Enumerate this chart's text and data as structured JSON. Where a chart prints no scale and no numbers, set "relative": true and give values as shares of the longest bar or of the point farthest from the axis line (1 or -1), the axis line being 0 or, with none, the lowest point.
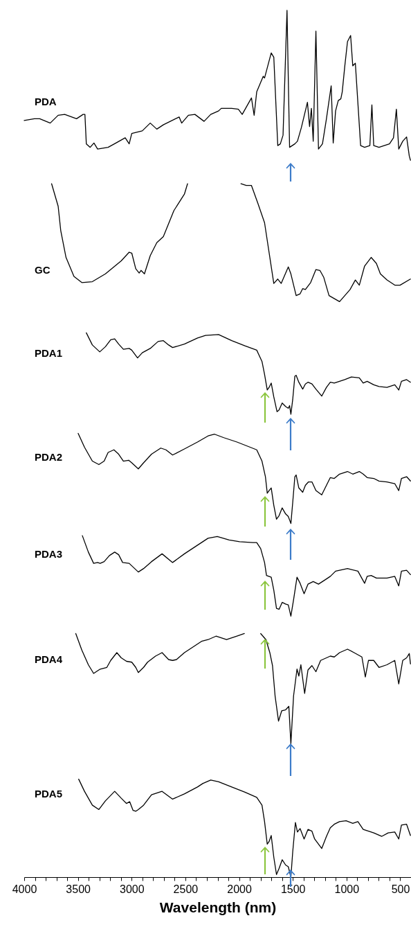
{
  "chart_data": {
    "type": "line",
    "relative": true,
    "xlim": [
      4000,
      400
    ],
    "xlabel": "Wavelength (nm)",
    "xticks": [
      4000,
      {
        "value": 3900,
        "label": null
      },
      {
        "value": 3800,
        "label": null
      },
      {
        "value": 3700,
        "label": null
      },
      {
        "value": 3600,
        "label": null
      },
      3500,
      {
        "value": 3400,
        "label": null
      },
      {
        "value": 3300,
        "label": null
      },
      {
        "value": 3200,
        "label": null
      },
      {
        "value": 3100,
        "label": null
      },
      3000,
      {
        "value": 2900,
        "label": null
      },
      {
        "value": 2800,
        "label": null
      },
      {
        "value": 2700,
        "label": null
      },
      {
        "value": 2600,
        "label": null
      },
      2500,
      {
        "value": 2400,
        "label": null
      },
      {
        "value": 2300,
        "label": null
      },
      {
        "value": 2200,
        "label": null
      },
      {
        "value": 2100,
        "label": null
      },
      2000,
      {
        "value": 1900,
        "label": null
      },
      {
        "value": 1800,
        "label": null
      },
      {
        "value": 1700,
        "label": null
      },
      {
        "value": 1600,
        "label": null
      },
      1500,
      {
        "value": 1400,
        "label": null
      },
      {
        "value": 1300,
        "label": null
      },
      {
        "value": 1200,
        "label": null
      },
      {
        "value": 1100,
        "label": null
      },
      1000,
      {
        "value": 900,
        "label": null
      },
      {
        "value": 800,
        "label": null
      },
      {
        "value": 700,
        "label": null
      },
      {
        "value": 600,
        "label": null
      },
      500,
      {
        "value": 400,
        "label": null
      }
    ],
    "series": [
      {
        "name": "PDA",
        "color": "#000000",
        "x": [
          4000,
          3905,
          3856,
          3758,
          3684,
          3623,
          3513,
          3452,
          3435,
          3422,
          3386,
          3351,
          3317,
          3219,
          3146,
          3060,
          3023,
          2999,
          2901,
          2827,
          2766,
          2705,
          2558,
          2534,
          2472,
          2411,
          2326,
          2264,
          2191,
          2166,
          2069,
          2007,
          1971,
          1885,
          1860,
          1836,
          1775,
          1763,
          1701,
          1677,
          1640,
          1616,
          1591,
          1554,
          1530,
          1481,
          1457,
          1420,
          1364,
          1344,
          1327,
          1310,
          1285,
          1261,
          1224,
          1187,
          1143,
          1124,
          1102,
          1077,
          1053,
          1040,
          1016,
          991,
          962,
          942,
          918,
          869,
          832,
          783,
          764,
          747,
          698,
          600,
          563,
          536,
          514,
          477,
          441,
          416,
          405
        ],
        "values": [
          0.873,
          0.875,
          0.875,
          0.87,
          0.879,
          0.88,
          0.875,
          0.88,
          0.88,
          0.846,
          0.842,
          0.847,
          0.84,
          0.842,
          0.847,
          0.853,
          0.846,
          0.858,
          0.861,
          0.87,
          0.863,
          0.868,
          0.877,
          0.87,
          0.879,
          0.88,
          0.872,
          0.88,
          0.884,
          0.887,
          0.887,
          0.886,
          0.88,
          0.899,
          0.879,
          0.906,
          0.924,
          0.922,
          0.951,
          0.946,
          0.844,
          0.846,
          0.856,
          1,
          0.842,
          0.846,
          0.849,
          0.865,
          0.894,
          0.866,
          0.887,
          0.849,
          0.976,
          0.84,
          0.846,
          0.875,
          0.913,
          0.847,
          0.884,
          0.896,
          0.898,
          0.906,
          0.936,
          0.964,
          0.971,
          0.936,
          0.939,
          0.844,
          0.842,
          0.844,
          0.891,
          0.844,
          0.842,
          0.846,
          0.853,
          0.886,
          0.84,
          0.849,
          0.854,
          0.832,
          0.827
        ]
      },
      {
        "name": "GC",
        "color": "#000000",
        "x": [
          3745,
          3684,
          3660,
          3611,
          3537,
          3464,
          3366,
          3244,
          3097,
          3023,
          2999,
          2962,
          2930,
          2913,
          2881,
          2827,
          2766,
          2705,
          2607,
          2509,
          2480,
          2200,
          1983,
          1934,
          1885,
          1824,
          1763,
          1677,
          1640,
          1608,
          1542,
          1518,
          1469,
          1432,
          1408,
          1383,
          1334,
          1285,
          1248,
          1212,
          1163,
          1065,
          967,
          918,
          881,
          832,
          771,
          722,
          685,
          624,
          551,
          502,
          405
        ],
        "values": [
          0.8,
          0.774,
          0.746,
          0.715,
          0.693,
          0.686,
          0.687,
          0.696,
          0.711,
          0.721,
          0.72,
          0.702,
          0.697,
          0.7,
          0.696,
          0.717,
          0.732,
          0.739,
          0.769,
          0.788,
          0.8,
          null,
          0.8,
          0.798,
          0.798,
          0.777,
          0.755,
          0.685,
          0.69,
          0.685,
          0.704,
          0.696,
          0.671,
          0.673,
          0.679,
          0.678,
          0.686,
          0.701,
          0.7,
          0.692,
          0.671,
          0.664,
          0.678,
          0.689,
          0.683,
          0.705,
          0.715,
          0.708,
          0.696,
          0.689,
          0.683,
          0.683,
          0.69
        ]
      },
      {
        "name": "PDA1",
        "color": "#000000",
        "x": [
          3422,
          3366,
          3297,
          3244,
          3195,
          3158,
          3121,
          3077,
          3023,
          2999,
          2945,
          2901,
          2827,
          2754,
          2705,
          2656,
          2619,
          2509,
          2387,
          2313,
          2191,
          2069,
          1946,
          1836,
          1787,
          1763,
          1738,
          1721,
          1701,
          1677,
          1647,
          1628,
          1599,
          1567,
          1542,
          1530,
          1518,
          1501,
          1481,
          1469,
          1444,
          1408,
          1383,
          1359,
          1322,
          1285,
          1231,
          1187,
          1151,
          1114,
          1065,
          1016,
          955,
          881,
          845,
          808,
          747,
          698,
          624,
          551,
          514,
          489,
          441,
          405
        ],
        "values": [
          0.628,
          0.614,
          0.606,
          0.612,
          0.62,
          0.621,
          0.615,
          0.609,
          0.61,
          0.608,
          0.599,
          0.605,
          0.61,
          0.618,
          0.619,
          0.614,
          0.611,
          0.615,
          0.622,
          0.625,
          0.626,
          0.619,
          0.613,
          0.608,
          0.595,
          0.58,
          0.562,
          0.565,
          0.57,
          0.554,
          0.537,
          0.539,
          0.547,
          0.543,
          0.541,
          0.544,
          0.534,
          0.551,
          0.578,
          0.579,
          0.571,
          0.563,
          0.569,
          0.571,
          0.569,
          0.563,
          0.555,
          0.565,
          0.571,
          0.57,
          0.572,
          0.574,
          0.577,
          0.576,
          0.57,
          0.572,
          0.568,
          0.566,
          0.565,
          0.568,
          0.562,
          0.572,
          0.574,
          0.571
        ]
      },
      {
        "name": "PDA2",
        "color": "#000000",
        "x": [
          3498,
          3439,
          3366,
          3305,
          3256,
          3219,
          3165,
          3121,
          3077,
          3028,
          2999,
          2938,
          2889,
          2815,
          2729,
          2681,
          2619,
          2509,
          2387,
          2289,
          2228,
          2142,
          2020,
          1897,
          1836,
          1787,
          1755,
          1738,
          1721,
          1701,
          1677,
          1652,
          1628,
          1599,
          1567,
          1542,
          1518,
          1501,
          1481,
          1469,
          1444,
          1408,
          1383,
          1354,
          1322,
          1285,
          1231,
          1187,
          1151,
          1114,
          1065,
          991,
          942,
          881,
          845,
          808,
          747,
          698,
          624,
          551,
          514,
          489,
          441,
          405
        ],
        "values": [
          0.512,
          0.496,
          0.48,
          0.476,
          0.48,
          0.49,
          0.493,
          0.488,
          0.48,
          0.481,
          0.478,
          0.471,
          0.478,
          0.488,
          0.495,
          0.493,
          0.487,
          0.494,
          0.502,
          0.509,
          0.511,
          0.507,
          0.502,
          0.496,
          0.493,
          0.48,
          0.462,
          0.443,
          0.446,
          0.449,
          0.429,
          0.413,
          0.417,
          0.426,
          0.419,
          0.416,
          0.408,
          0.432,
          0.462,
          0.464,
          0.449,
          0.444,
          0.452,
          0.456,
          0.456,
          0.446,
          0.441,
          0.452,
          0.461,
          0.46,
          0.465,
          0.468,
          0.465,
          0.468,
          0.465,
          0.461,
          0.46,
          0.457,
          0.456,
          0.454,
          0.446,
          0.46,
          0.462,
          0.457
        ]
      },
      {
        "name": "PDA3",
        "color": "#000000",
        "x": [
          3459,
          3403,
          3354,
          3317,
          3293,
          3256,
          3207,
          3158,
          3121,
          3084,
          3023,
          2938,
          2889,
          2815,
          2717,
          2619,
          2509,
          2387,
          2289,
          2203,
          2093,
          1995,
          1873,
          1836,
          1799,
          1763,
          1745,
          1701,
          1677,
          1652,
          1628,
          1599,
          1567,
          1542,
          1518,
          1493,
          1461,
          1432,
          1395,
          1359,
          1310,
          1261,
          1187,
          1151,
          1102,
          991,
          894,
          832,
          808,
          771,
          722,
          624,
          551,
          514,
          489,
          441,
          405
        ],
        "values": [
          0.394,
          0.375,
          0.362,
          0.363,
          0.362,
          0.364,
          0.371,
          0.375,
          0.372,
          0.363,
          0.362,
          0.352,
          0.356,
          0.364,
          0.373,
          0.363,
          0.373,
          0.383,
          0.391,
          0.393,
          0.389,
          0.387,
          0.386,
          0.386,
          0.379,
          0.363,
          0.348,
          0.346,
          0.331,
          0.31,
          0.309,
          0.317,
          0.315,
          0.314,
          0.301,
          0.32,
          0.346,
          0.339,
          0.327,
          0.338,
          0.341,
          0.338,
          0.344,
          0.347,
          0.353,
          0.356,
          0.353,
          0.339,
          0.347,
          0.348,
          0.345,
          0.345,
          0.347,
          0.336,
          0.353,
          0.354,
          0.349
        ]
      },
      {
        "name": "PDA4",
        "color": "#000000",
        "x": [
          3520,
          3464,
          3403,
          3354,
          3293,
          3231,
          3195,
          3138,
          3097,
          3048,
          2999,
          2962,
          2938,
          2889,
          2852,
          2778,
          2717,
          2656,
          2619,
          2583,
          2509,
          2411,
          2350,
          2289,
          2215,
          2117,
          2020,
          1951,
          1880,
          1799,
          1750,
          1714,
          1689,
          1665,
          1633,
          1603,
          1567,
          1537,
          1518,
          1493,
          1461,
          1444,
          1425,
          1390,
          1359,
          1322,
          1285,
          1241,
          1187,
          1151,
          1114,
          1065,
          991,
          930,
          857,
          825,
          796,
          747,
          698,
          624,
          551,
          514,
          477,
          441,
          416,
          405
        ],
        "values": [
          0.281,
          0.262,
          0.245,
          0.235,
          0.24,
          0.242,
          0.25,
          0.259,
          0.253,
          0.249,
          0.248,
          0.242,
          0.236,
          0.242,
          0.248,
          0.255,
          0.259,
          0.251,
          0.25,
          0.251,
          0.259,
          0.267,
          0.272,
          0.274,
          0.278,
          0.274,
          0.278,
          0.281,
          null,
          0.281,
          0.274,
          0.259,
          0.244,
          0.209,
          0.18,
          0.192,
          0.193,
          0.197,
          0.154,
          0.209,
          0.24,
          0.232,
          0.245,
          0.212,
          0.239,
          0.244,
          0.237,
          0.25,
          0.253,
          0.255,
          0.254,
          0.259,
          0.263,
          0.259,
          0.254,
          0.231,
          0.25,
          0.25,
          0.242,
          0.245,
          0.25,
          0.223,
          0.25,
          0.253,
          0.258,
          0.246
        ]
      },
      {
        "name": "PDA5",
        "color": "#000000",
        "x": [
          3493,
          3439,
          3366,
          3305,
          3244,
          3158,
          3097,
          3048,
          3018,
          2987,
          2962,
          2938,
          2889,
          2815,
          2717,
          2619,
          2509,
          2387,
          2338,
          2264,
          2191,
          2069,
          1946,
          1836,
          1787,
          1763,
          1738,
          1721,
          1701,
          1677,
          1652,
          1628,
          1599,
          1567,
          1542,
          1518,
          1501,
          1476,
          1457,
          1432,
          1395,
          1359,
          1322,
          1297,
          1231,
          1187,
          1151,
          1114,
          1065,
          1004,
          942,
          894,
          845,
          796,
          747,
          673,
          612,
          551,
          514,
          489,
          441,
          405
        ],
        "values": [
          0.113,
          0.099,
          0.083,
          0.078,
          0.088,
          0.099,
          0.091,
          0.085,
          0.087,
          0.077,
          0.076,
          0.078,
          0.083,
          0.095,
          0.099,
          0.09,
          0.096,
          0.104,
          0.108,
          0.112,
          0.11,
          0.104,
          0.098,
          0.092,
          0.083,
          0.064,
          0.038,
          0.041,
          0.048,
          0.023,
          0.003,
          0.01,
          0.02,
          0.014,
          0.012,
          0,
          0.029,
          0.063,
          0.052,
          0.056,
          0.044,
          0.055,
          0.053,
          0.044,
          0.033,
          0.047,
          0.057,
          0.061,
          0.064,
          0.065,
          0.062,
          0.064,
          0.055,
          0.053,
          0.051,
          0.047,
          0.051,
          0.052,
          0.044,
          0.06,
          0.061,
          0.048
        ]
      }
    ]
  }
}
